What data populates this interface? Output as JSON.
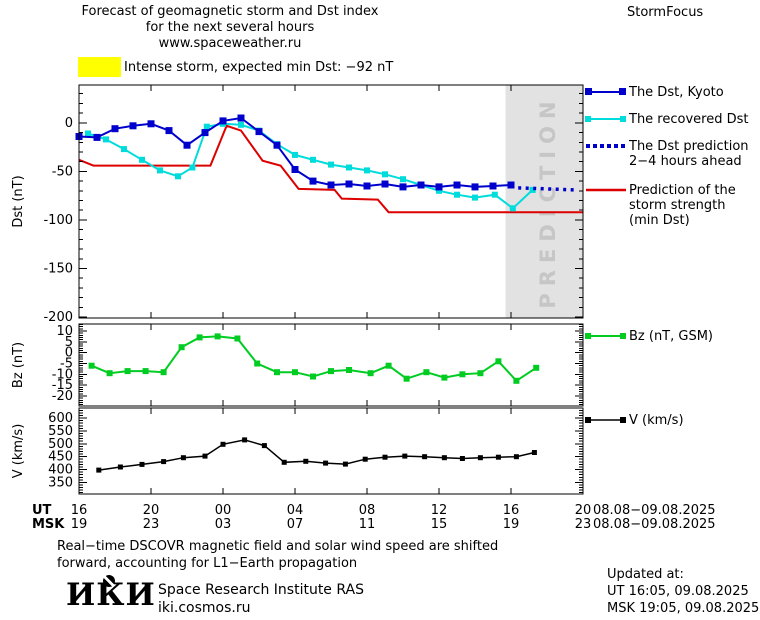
{
  "header": {
    "title_line1": "Forecast of geomagnetic storm and Dst index",
    "title_line2": "for the next several hours",
    "title_line3": "www.spaceweather.ru",
    "brand": "StormFocus"
  },
  "banner": {
    "text": "Intense storm, expected min Dst: −92 nT"
  },
  "prediction_band_label": "PREDICTION",
  "legend": {
    "dst_kyoto": "The Dst, Kyoto",
    "recovered": "The recovered Dst",
    "prediction_line1": "The Dst prediction",
    "prediction_line2": "2−4 hours ahead",
    "storm_line1": "Prediction of the",
    "storm_line2": "storm strength",
    "storm_line3": "(min Dst)",
    "bz": "Bz (nT, GSM)",
    "v": "V (km/s)"
  },
  "colors": {
    "dst_blue": "#0000cc",
    "recovered_cyan": "#00dcdc",
    "prediction_red": "#dd0000",
    "bz_green": "#00cc22",
    "v_black": "#000000",
    "banner_yellow": "#ffff00",
    "band_gray": "#e2e2e2",
    "band_label_gray": "#c6c6c6"
  },
  "axis": {
    "ut_label": "UT",
    "msk_label": "MSK",
    "xticks": [
      {
        "h": 0,
        "ut": "16",
        "msk": "19"
      },
      {
        "h": 4,
        "ut": "20",
        "msk": "23"
      },
      {
        "h": 8,
        "ut": "00",
        "msk": "03"
      },
      {
        "h": 12,
        "ut": "04",
        "msk": "07"
      },
      {
        "h": 16,
        "ut": "08",
        "msk": "11"
      },
      {
        "h": 20,
        "ut": "12",
        "msk": "15"
      },
      {
        "h": 24,
        "ut": "16",
        "msk": "19"
      },
      {
        "h": 28,
        "ut": "20",
        "msk": "23"
      }
    ],
    "date_ut": "08.08−09.08.2025",
    "date_msk": "08.08−09.08.2025"
  },
  "footer": {
    "note_line1": "Real−time DSCOVR magnetic field and solar wind speed are shifted",
    "note_line2": "forward, accounting for L1−Earth propagation",
    "logo_i1": "И",
    "logo_k": "К",
    "logo_i2": "И",
    "institute": "Space Research Institute RAS",
    "site": "iki.cosmos.ru",
    "updated_label": "Updated at:",
    "updated_ut": "UT  16:05, 09.08.2025",
    "updated_msk": "MSK 19:05, 09.08.2025"
  },
  "chart_data": [
    {
      "type": "line",
      "name": "dst-index",
      "ylabel": "Dst (nT)",
      "xlim": [
        0,
        28
      ],
      "ylim": [
        -201,
        39
      ],
      "yticks": [
        {
          "v": 0,
          "label": "0"
        },
        {
          "v": -50,
          "label": "-50"
        },
        {
          "v": -100,
          "label": "-100"
        },
        {
          "v": -150,
          "label": "-150"
        },
        {
          "v": -200,
          "label": "-200"
        }
      ],
      "y_minor_step": 10,
      "prediction_band_x": [
        23.7,
        28
      ],
      "series": [
        {
          "name": "prediction-storm-strength",
          "label": "Prediction of the storm strength (min Dst)",
          "color": "#dd0000",
          "width": 2,
          "marker": false,
          "x": [
            0,
            0.8,
            7.3,
            8.2,
            9.0,
            10.2,
            11.2,
            12.2,
            14.2,
            14.6,
            16.6,
            17.2,
            28
          ],
          "y": [
            -38,
            -44,
            -44,
            -3,
            -8,
            -39,
            -44,
            -68,
            -69,
            -78,
            -79,
            -92,
            -92
          ]
        },
        {
          "name": "recovered-dst",
          "label": "The recovered Dst",
          "color": "#00dcdc",
          "width": 2,
          "marker": true,
          "marker_size": 6,
          "x": [
            0.5,
            1.5,
            2.5,
            3.5,
            4.5,
            5.5,
            6.3,
            7.1,
            8,
            9,
            10,
            11,
            12,
            13,
            14,
            15,
            16,
            17,
            18,
            19,
            20,
            21,
            22,
            23.1,
            24.1,
            25.2
          ],
          "y": [
            -11,
            -17,
            -27,
            -38,
            -49,
            -55,
            -46,
            -4,
            -1,
            -2,
            -8,
            -22,
            -33,
            -38,
            -43,
            -46,
            -49,
            -53,
            -58,
            -64,
            -70,
            -74,
            -77,
            -74,
            -88,
            -69
          ]
        },
        {
          "name": "dst-kyoto",
          "label": "The Dst, Kyoto",
          "color": "#0000cc",
          "width": 2,
          "marker": true,
          "marker_size": 7,
          "x": [
            0,
            1,
            2,
            3,
            4,
            5,
            6,
            7,
            8,
            9,
            10,
            11,
            12,
            13,
            14,
            15,
            16,
            17,
            18,
            19,
            20,
            21,
            22,
            23,
            24
          ],
          "y": [
            -14,
            -15,
            -6,
            -3,
            -1,
            -8,
            -23,
            -10,
            2,
            5,
            -9,
            -23,
            -48,
            -60,
            -64,
            -63,
            -65,
            -63,
            -66,
            -64,
            -66,
            -64,
            -66,
            -65,
            -64
          ]
        },
        {
          "name": "dst-prediction-2-4h",
          "label": "The Dst prediction 2−4 hours ahead",
          "color": "#0000cc",
          "width": 3.5,
          "marker": false,
          "style": "dotted",
          "x": [
            24.4,
            27.6
          ],
          "y": [
            -67,
            -69
          ]
        }
      ]
    },
    {
      "type": "line",
      "name": "bz-gsm",
      "ylabel": "Bz (nT)",
      "xlim": [
        0,
        28
      ],
      "ylim": [
        -24.6,
        13.2
      ],
      "yticks": [
        {
          "v": 10,
          "label": "10"
        },
        {
          "v": 5,
          "label": "5"
        },
        {
          "v": 0,
          "label": "0"
        },
        {
          "v": -5,
          "label": "-5"
        },
        {
          "v": -10,
          "label": "-10"
        },
        {
          "v": -15,
          "label": "-15"
        },
        {
          "v": -20,
          "label": "-20"
        }
      ],
      "y_minor_step": 1,
      "series": [
        {
          "name": "bz",
          "label": "Bz (nT, GSM)",
          "color": "#00cc22",
          "width": 2,
          "marker": true,
          "marker_size": 6,
          "x": [
            0.7,
            1.7,
            2.7,
            3.7,
            4.7,
            5.7,
            6.7,
            7.7,
            8.8,
            9.9,
            11,
            12,
            13,
            14,
            15,
            16.2,
            17.2,
            18.2,
            19.3,
            20.3,
            21.3,
            22.3,
            23.3,
            24.3,
            25.4
          ],
          "y": [
            -6,
            -9.5,
            -8.5,
            -8.5,
            -9,
            2.5,
            7,
            7.5,
            6.5,
            -5,
            -9,
            -9,
            -11,
            -8.5,
            -8,
            -9.5,
            -6,
            -12,
            -9,
            -11.5,
            -10,
            -9.5,
            -4,
            -13,
            -7
          ]
        }
      ]
    },
    {
      "type": "line",
      "name": "solar-wind-speed",
      "ylabel": "V (km/s)",
      "xlim": [
        0,
        28
      ],
      "ylim": [
        305,
        639
      ],
      "yticks": [
        {
          "v": 600,
          "label": "600"
        },
        {
          "v": 550,
          "label": "550"
        },
        {
          "v": 500,
          "label": "500"
        },
        {
          "v": 450,
          "label": "450"
        },
        {
          "v": 400,
          "label": "400"
        },
        {
          "v": 350,
          "label": "350"
        }
      ],
      "y_minor_step": 10,
      "series": [
        {
          "name": "v",
          "label": "V (km/s)",
          "color": "#000000",
          "width": 1.5,
          "marker": true,
          "marker_size": 5,
          "x": [
            1.1,
            2.3,
            3.5,
            4.7,
            5.8,
            7.0,
            8.0,
            9.2,
            10.3,
            11.4,
            12.6,
            13.7,
            14.8,
            15.9,
            17.0,
            18.1,
            19.2,
            20.3,
            21.3,
            22.3,
            23.3,
            24.3,
            25.3
          ],
          "y": [
            398,
            410,
            420,
            431,
            446,
            452,
            498,
            515,
            493,
            428,
            432,
            425,
            421,
            440,
            448,
            452,
            450,
            446,
            443,
            446,
            448,
            450,
            466
          ]
        }
      ]
    }
  ]
}
